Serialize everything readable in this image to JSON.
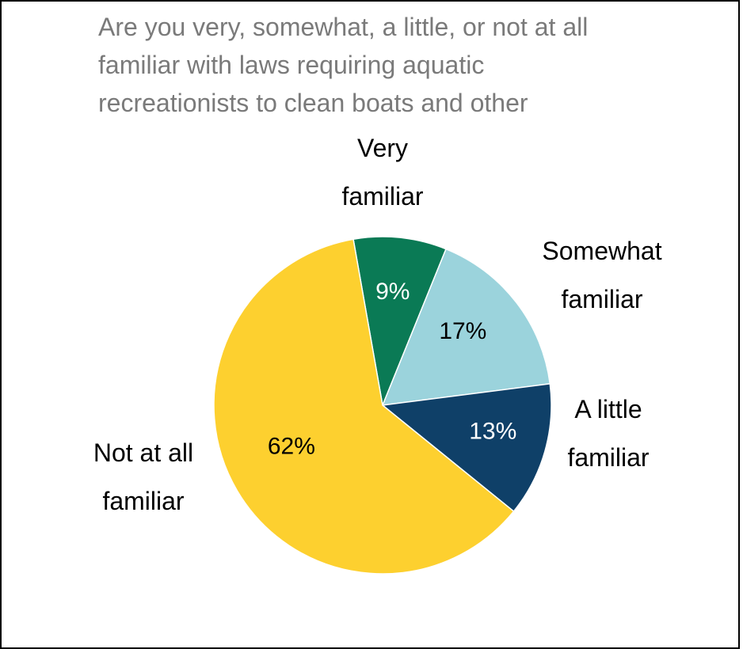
{
  "chart_data": {
    "type": "pie",
    "title_lines": [
      "Are you very, somewhat, a little, or not at all",
      "familiar with laws requiring aquatic",
      "recreationists to clean boats and other"
    ],
    "start_angle_deg": -10,
    "direction": "clockwise",
    "slices": [
      {
        "label_lines": [
          "Very",
          "familiar"
        ],
        "value": 9,
        "pct_text": "9%",
        "color": "#0a7a55",
        "pct_color": "#ffffff"
      },
      {
        "label_lines": [
          "Somewhat",
          "familiar"
        ],
        "value": 17,
        "pct_text": "17%",
        "color": "#9bd3dc",
        "pct_color": "#000000"
      },
      {
        "label_lines": [
          "A little",
          "familiar"
        ],
        "value": 13,
        "pct_text": "13%",
        "color": "#0f4068",
        "pct_color": "#ffffff"
      },
      {
        "label_lines": [
          "Not at all",
          "familiar"
        ],
        "value": 62,
        "pct_text": "62%",
        "color": "#fdd02f",
        "pct_color": "#000000"
      }
    ]
  }
}
